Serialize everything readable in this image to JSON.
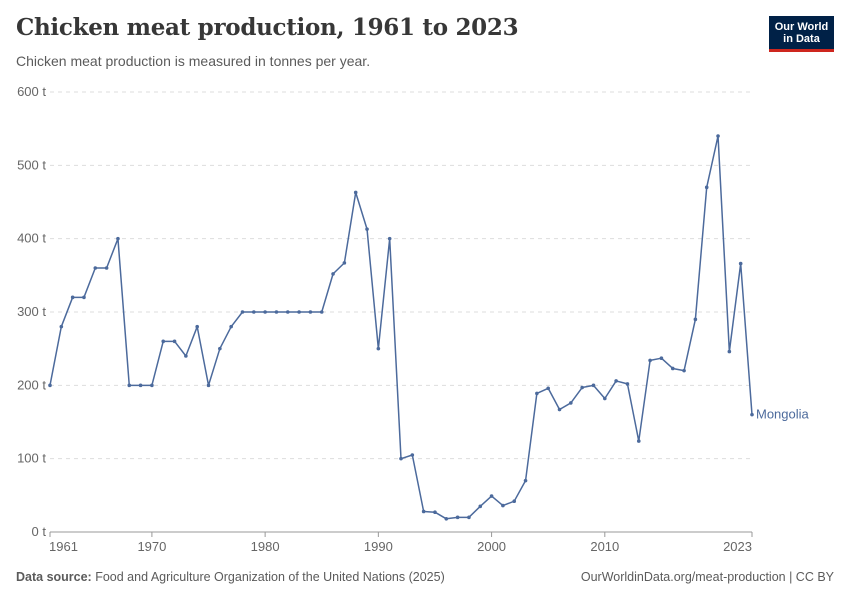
{
  "header": {
    "title": "Chicken meat production, 1961 to 2023",
    "subtitle": "Chicken meat production is measured in tonnes per year."
  },
  "logo": {
    "line1": "Our World",
    "line2": "in Data"
  },
  "footer": {
    "source_label": "Data source:",
    "source_text": "Food and Agriculture Organization of the United Nations (2025)",
    "credit": "OurWorldinData.org/meat-production | CC BY"
  },
  "colors": {
    "series": "#4c6a9c",
    "grid": "#dddddd",
    "axis": "#666666",
    "logo_bg": "#002147",
    "logo_accent": "#ce261e"
  },
  "chart_data": {
    "type": "line",
    "title": "Chicken meat production, 1961 to 2023",
    "subtitle": "Chicken meat production is measured in tonnes per year.",
    "xlim": [
      1961,
      2023
    ],
    "ylim": [
      0,
      600
    ],
    "x_ticks": [
      1961,
      1970,
      1980,
      1990,
      2000,
      2010,
      2023
    ],
    "y_ticks": [
      0,
      100,
      200,
      300,
      400,
      500,
      600
    ],
    "y_tick_labels": [
      "0 t",
      "100 t",
      "200 t",
      "300 t",
      "400 t",
      "500 t",
      "600 t"
    ],
    "grid": "horizontal dashed",
    "legend": "series label at line end (right)",
    "series": [
      {
        "name": "Mongolia",
        "color": "#4c6a9c",
        "x": [
          1961,
          1962,
          1963,
          1964,
          1965,
          1966,
          1967,
          1968,
          1969,
          1970,
          1971,
          1972,
          1973,
          1974,
          1975,
          1976,
          1977,
          1978,
          1979,
          1980,
          1981,
          1982,
          1983,
          1984,
          1985,
          1986,
          1987,
          1988,
          1989,
          1990,
          1991,
          1992,
          1993,
          1994,
          1995,
          1996,
          1997,
          1998,
          1999,
          2000,
          2001,
          2002,
          2003,
          2004,
          2005,
          2006,
          2007,
          2008,
          2009,
          2010,
          2011,
          2012,
          2013,
          2014,
          2015,
          2016,
          2017,
          2018,
          2019,
          2020,
          2021,
          2022,
          2023
        ],
        "values": [
          200,
          280,
          320,
          320,
          360,
          360,
          400,
          200,
          200,
          200,
          260,
          260,
          240,
          280,
          200,
          250,
          280,
          300,
          300,
          300,
          300,
          300,
          300,
          300,
          300,
          352,
          367,
          463,
          413,
          250,
          400,
          100,
          105,
          28,
          27,
          18,
          20,
          20,
          35,
          49,
          36,
          42,
          70,
          189,
          196,
          167,
          176,
          197,
          200,
          182,
          206,
          202,
          124,
          234,
          237,
          223,
          220,
          290,
          470,
          540,
          246,
          366,
          160
        ]
      }
    ]
  }
}
